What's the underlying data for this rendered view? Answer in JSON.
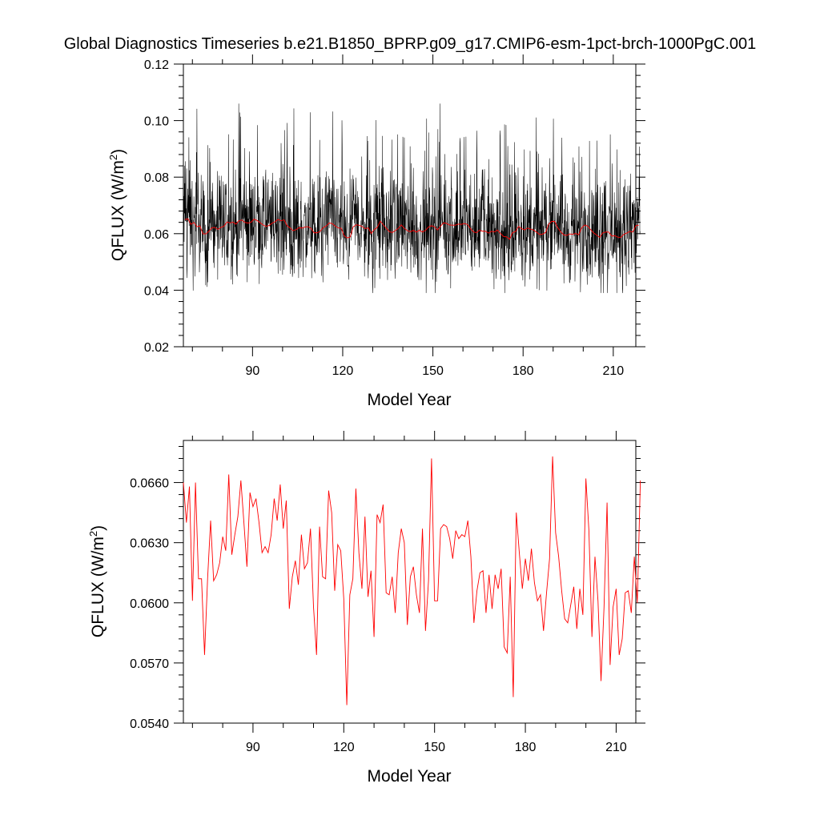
{
  "title": "Global Diagnostics Timeseries b.e21.B1850_BPRP.g09_g17.CMIP6-esm-1pct-brch-1000PgC.001",
  "colors": {
    "monthly": "#000000",
    "annual": "#ff0000"
  },
  "chart_data": [
    {
      "type": "line",
      "xlabel": "Model Year",
      "ylabel_main": "QFLUX (W/m",
      "ylabel_sup": "2",
      "ylabel_close": ")",
      "xlim": [
        67,
        217.5
      ],
      "ylim": [
        0.02,
        0.12
      ],
      "xticks": [
        90,
        120,
        150,
        180,
        210
      ],
      "yticks": [
        "0.02",
        "0.04",
        "0.06",
        "0.08",
        "0.10",
        "0.12"
      ],
      "series": [
        {
          "description": "monthly values, black",
          "monthly_values_by_year": "see annual_means; monthly noise envelope approx 0.04-0.10 with spikes to 0.106"
        },
        {
          "description": "annual running mean, red"
        }
      ],
      "monthly_envelope": {
        "low": 0.045,
        "high": 0.085,
        "spike_max": 0.106,
        "spike_min": 0.039
      }
    },
    {
      "type": "line",
      "xlabel": "Model Year",
      "ylabel_main": "QFLUX (W/m",
      "ylabel_sup": "2",
      "ylabel_close": ")",
      "xlim": [
        67,
        216.5
      ],
      "ylim": [
        0.054,
        0.0681
      ],
      "xticks": [
        90,
        120,
        150,
        180,
        210
      ],
      "yticks": [
        "0.0540",
        "0.0570",
        "0.0600",
        "0.0630",
        "0.0660"
      ],
      "x_start": 67,
      "annual_means": [
        0.066,
        0.064,
        0.0658,
        0.0601,
        0.066,
        0.0612,
        0.0612,
        0.0574,
        0.0612,
        0.0641,
        0.0611,
        0.0614,
        0.062,
        0.0633,
        0.0626,
        0.0664,
        0.0624,
        0.0634,
        0.0643,
        0.0661,
        0.064,
        0.0618,
        0.0655,
        0.0648,
        0.0652,
        0.064,
        0.0625,
        0.0628,
        0.0625,
        0.0634,
        0.0652,
        0.0641,
        0.0659,
        0.0637,
        0.0651,
        0.0597,
        0.0613,
        0.0621,
        0.0609,
        0.0634,
        0.0617,
        0.062,
        0.0637,
        0.0598,
        0.0574,
        0.0638,
        0.0613,
        0.0612,
        0.0656,
        0.0645,
        0.0606,
        0.0629,
        0.0626,
        0.0602,
        0.0549,
        0.0604,
        0.0612,
        0.0657,
        0.0625,
        0.0607,
        0.0643,
        0.0603,
        0.0616,
        0.0583,
        0.0644,
        0.064,
        0.0649,
        0.0605,
        0.0604,
        0.0613,
        0.0595,
        0.0625,
        0.0637,
        0.063,
        0.0589,
        0.0613,
        0.0618,
        0.0604,
        0.0595,
        0.0637,
        0.0586,
        0.0611,
        0.0672,
        0.0601,
        0.0601,
        0.0637,
        0.0639,
        0.0638,
        0.0632,
        0.0622,
        0.0636,
        0.0632,
        0.0634,
        0.0633,
        0.0641,
        0.0623,
        0.059,
        0.0606,
        0.0615,
        0.0616,
        0.0595,
        0.0614,
        0.0597,
        0.0614,
        0.0607,
        0.0617,
        0.0578,
        0.0575,
        0.0613,
        0.0553,
        0.0645,
        0.0625,
        0.0607,
        0.0622,
        0.0611,
        0.0627,
        0.061,
        0.0601,
        0.0604,
        0.0586,
        0.0605,
        0.0622,
        0.0673,
        0.0635,
        0.0623,
        0.0606,
        0.0592,
        0.059,
        0.0599,
        0.0608,
        0.0587,
        0.0607,
        0.0594,
        0.0662,
        0.0636,
        0.0583,
        0.0623,
        0.0601,
        0.0561,
        0.0598,
        0.065,
        0.0569,
        0.0598,
        0.0607,
        0.0574,
        0.0582,
        0.0605,
        0.0606,
        0.0595,
        0.0623,
        0.06,
        0.0661
      ]
    }
  ]
}
